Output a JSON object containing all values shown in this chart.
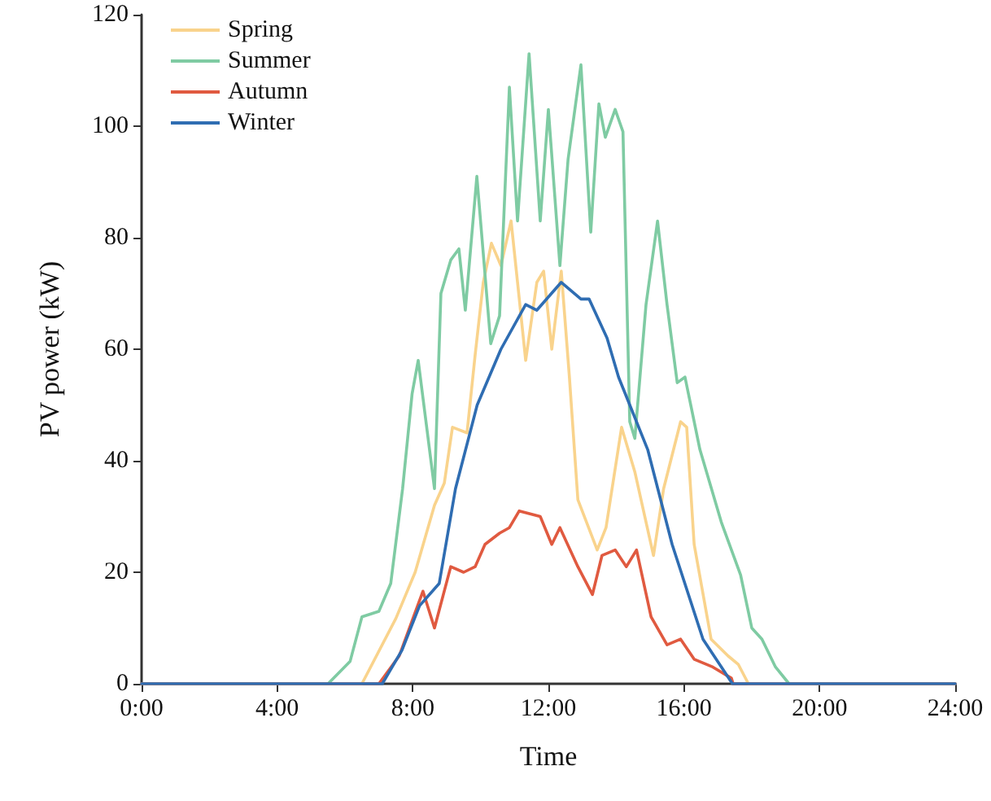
{
  "chart_data": {
    "type": "line",
    "xlabel": "Time",
    "ylabel": "PV power (kW)",
    "xlim": [
      0,
      24
    ],
    "xticks": [
      {
        "value": 0,
        "label": "0:00"
      },
      {
        "value": 4,
        "label": "4:00"
      },
      {
        "value": 8,
        "label": "8:00"
      },
      {
        "value": 12,
        "label": "12:00"
      },
      {
        "value": 16,
        "label": "16:00"
      },
      {
        "value": 20,
        "label": "20:00"
      },
      {
        "value": 24,
        "label": "24:00"
      }
    ],
    "ylim": [
      0,
      120
    ],
    "yticks": [
      0,
      20,
      40,
      60,
      80,
      100,
      120
    ],
    "grid": false,
    "legend": "top left",
    "marker": "none",
    "line_style": "solid",
    "series": [
      {
        "name": "Spring",
        "color": "#f9d38c",
        "x": [
          0,
          6.5,
          7.5,
          8.07,
          8.64,
          8.93,
          9.17,
          9.6,
          9.84,
          10.08,
          10.32,
          10.6,
          10.9,
          11.09,
          11.33,
          11.66,
          11.86,
          12.1,
          12.38,
          12.62,
          12.87,
          13.44,
          13.7,
          14.16,
          14.55,
          15.1,
          15.4,
          15.9,
          16.08,
          16.3,
          16.8,
          17.3,
          17.6,
          17.9,
          24
        ],
        "values": [
          0,
          0,
          11.7,
          20,
          32,
          36,
          46,
          45,
          59,
          72,
          79,
          75,
          83,
          72,
          58,
          72,
          74,
          60,
          74,
          55,
          33,
          24,
          28,
          46,
          38,
          23,
          35,
          47,
          46,
          25,
          8,
          5,
          3.5,
          0,
          0
        ]
      },
      {
        "name": "Summer",
        "color": "#7fcba3",
        "x": [
          0,
          5.5,
          6.15,
          6.5,
          7.0,
          7.35,
          7.7,
          7.98,
          8.16,
          8.64,
          8.83,
          9.12,
          9.36,
          9.55,
          9.89,
          10.3,
          10.56,
          10.85,
          11.09,
          11.43,
          11.76,
          12.0,
          12.34,
          12.58,
          12.96,
          13.25,
          13.49,
          13.68,
          13.97,
          14.2,
          14.4,
          14.55,
          14.88,
          15.22,
          15.5,
          15.8,
          16.03,
          16.47,
          17.1,
          17.67,
          18.0,
          18.3,
          18.7,
          19.1,
          24
        ],
        "values": [
          0,
          0,
          4,
          12,
          13,
          18,
          35,
          52,
          58,
          35,
          70,
          76,
          78,
          67,
          91,
          61,
          66,
          107,
          83,
          113,
          83,
          103,
          75,
          94,
          111,
          81,
          104,
          98,
          103,
          99,
          47,
          44,
          68,
          83,
          68,
          54,
          55,
          42,
          29,
          19.5,
          10,
          8,
          3,
          0,
          0
        ]
      },
      {
        "name": "Autumn",
        "color": "#e05a40",
        "x": [
          0,
          7.0,
          7.6,
          8.3,
          8.64,
          9.12,
          9.5,
          9.84,
          10.13,
          10.56,
          10.85,
          11.14,
          11.76,
          12.1,
          12.34,
          12.87,
          13.3,
          13.58,
          13.97,
          14.3,
          14.6,
          15.03,
          15.5,
          15.9,
          16.3,
          16.85,
          17.4,
          17.45,
          24
        ],
        "values": [
          0,
          0,
          5,
          16.6,
          10,
          21,
          20,
          21,
          25,
          27,
          28,
          31,
          30,
          25,
          28,
          21,
          16,
          23,
          24,
          21,
          24,
          12,
          7,
          8,
          4.4,
          3,
          1,
          0,
          0
        ]
      },
      {
        "name": "Winter",
        "color": "#2f6db2",
        "x": [
          0,
          7.1,
          7.68,
          8.2,
          8.78,
          9.26,
          9.9,
          10.6,
          11.33,
          11.66,
          12.38,
          12.96,
          13.2,
          13.73,
          14.07,
          14.93,
          15.65,
          16.56,
          17.43,
          24
        ],
        "values": [
          0,
          0,
          6,
          14,
          18,
          35,
          50,
          60,
          68,
          67,
          72,
          69,
          69,
          62,
          55,
          42,
          25,
          8,
          0,
          0
        ]
      }
    ]
  }
}
